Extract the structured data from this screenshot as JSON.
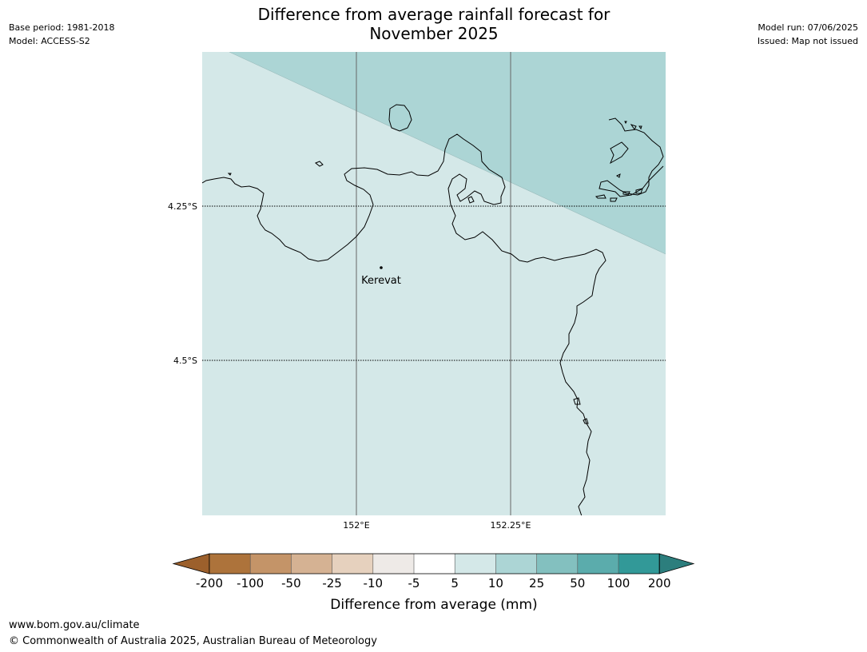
{
  "header": {
    "base_period": "Base period: 1981-2018",
    "model": "Model: ACCESS-S2",
    "model_run": "Model run: 07/06/2025",
    "issued": "Issued: Map not issued",
    "title_line1": "Difference from average rainfall forecast for",
    "title_line2": "November 2025"
  },
  "map": {
    "lat_labels": [
      "4.25°S",
      "4.5°S"
    ],
    "lon_labels": [
      "152°E",
      "152.25°E"
    ],
    "places": [
      {
        "name": "Kerevat"
      }
    ],
    "colors": {
      "land_5_10": "#d4e8e8",
      "band_10_25": "#acd5d5",
      "coast": "#000000",
      "graticule": "#666666"
    }
  },
  "colorbar": {
    "label": "Difference from average (mm)",
    "ticks": [
      "-200",
      "-100",
      "-50",
      "-25",
      "-10",
      "-5",
      "5",
      "10",
      "25",
      "50",
      "100",
      "200"
    ],
    "colors": [
      "#9c602c",
      "#ad733b",
      "#c49468",
      "#d5b293",
      "#e6d1be",
      "#eeeae7",
      "#ffffff",
      "#d4e8e8",
      "#acd5d5",
      "#83c0bf",
      "#5bacac",
      "#329998",
      "#2c7e7d"
    ]
  },
  "footer": {
    "url": "www.bom.gov.au/climate",
    "copyright": "© Commonwealth of Australia 2025, Australian Bureau of Meteorology"
  }
}
